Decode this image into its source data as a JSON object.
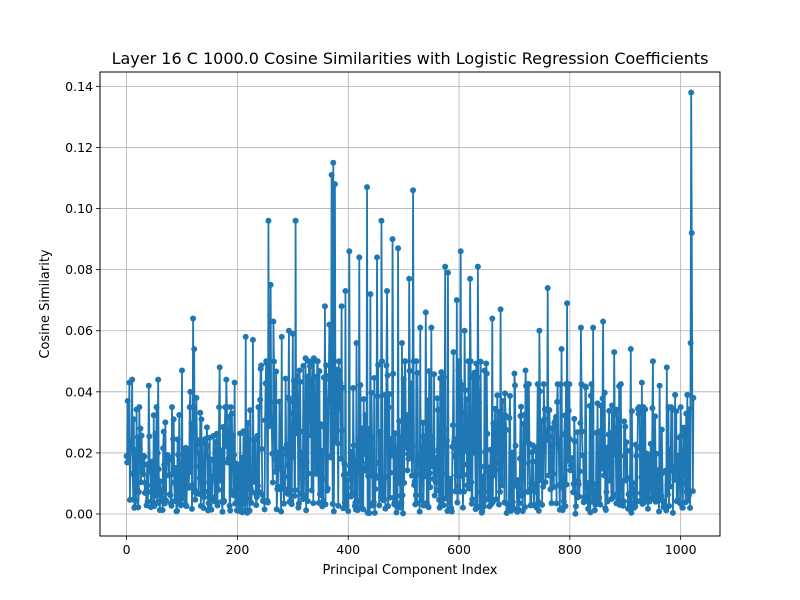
{
  "chart_data": {
    "type": "line",
    "title": "Layer 16 C 1000.0 Cosine Similarities with Logistic Regression Coefficients",
    "xlabel": "Principal Component Index",
    "ylabel": "Cosine Similarity",
    "xlim": [
      -48,
      1071
    ],
    "ylim": [
      -0.0072,
      0.1447
    ],
    "xticks": [
      0,
      200,
      400,
      600,
      800,
      1000
    ],
    "yticks": [
      0.0,
      0.02,
      0.04,
      0.06,
      0.08,
      0.1,
      0.12,
      0.14
    ],
    "grid": true,
    "marker": "circle",
    "n_points": 1024,
    "series": [
      {
        "color": "#1f77b4",
        "peaks": [
          [
            0,
            0.019
          ],
          [
            2,
            0.037
          ],
          [
            5,
            0.043
          ],
          [
            10,
            0.044
          ],
          [
            14,
            0.002
          ],
          [
            25,
            0.028
          ],
          [
            40,
            0.042
          ],
          [
            57,
            0.044
          ],
          [
            70,
            0.03
          ],
          [
            85,
            0.031
          ],
          [
            100,
            0.047
          ],
          [
            115,
            0.04
          ],
          [
            120,
            0.064
          ],
          [
            122,
            0.054
          ],
          [
            126,
            0.038
          ],
          [
            135,
            0.031
          ],
          [
            150,
            0.025
          ],
          [
            168,
            0.048
          ],
          [
            180,
            0.044
          ],
          [
            195,
            0.043
          ],
          [
            215,
            0.058
          ],
          [
            228,
            0.057
          ],
          [
            240,
            0.035
          ],
          [
            252,
            0.05
          ],
          [
            256,
            0.096
          ],
          [
            260,
            0.075
          ],
          [
            265,
            0.063
          ],
          [
            280,
            0.058
          ],
          [
            293,
            0.06
          ],
          [
            300,
            0.059
          ],
          [
            305,
            0.096
          ],
          [
            312,
            0.047
          ],
          [
            323,
            0.051
          ],
          [
            338,
            0.051
          ],
          [
            345,
            0.05
          ],
          [
            358,
            0.068
          ],
          [
            366,
            0.062
          ],
          [
            370,
            0.111
          ],
          [
            373,
            0.115
          ],
          [
            376,
            0.108
          ],
          [
            388,
            0.068
          ],
          [
            395,
            0.073
          ],
          [
            402,
            0.086
          ],
          [
            415,
            0.056
          ],
          [
            420,
            0.084
          ],
          [
            434,
            0.107
          ],
          [
            440,
            0.072
          ],
          [
            452,
            0.084
          ],
          [
            460,
            0.096
          ],
          [
            470,
            0.073
          ],
          [
            480,
            0.09
          ],
          [
            490,
            0.087
          ],
          [
            497,
            0.056
          ],
          [
            510,
            0.077
          ],
          [
            517,
            0.106
          ],
          [
            530,
            0.061
          ],
          [
            540,
            0.066
          ],
          [
            550,
            0.061
          ],
          [
            575,
            0.081
          ],
          [
            580,
            0.079
          ],
          [
            590,
            0.053
          ],
          [
            596,
            0.07
          ],
          [
            603,
            0.086
          ],
          [
            610,
            0.06
          ],
          [
            620,
            0.077
          ],
          [
            634,
            0.081
          ],
          [
            650,
            0.046
          ],
          [
            660,
            0.064
          ],
          [
            675,
            0.067
          ],
          [
            700,
            0.046
          ],
          [
            720,
            0.047
          ],
          [
            745,
            0.06
          ],
          [
            760,
            0.074
          ],
          [
            785,
            0.054
          ],
          [
            795,
            0.069
          ],
          [
            820,
            0.061
          ],
          [
            842,
            0.061
          ],
          [
            860,
            0.063
          ],
          [
            880,
            0.053
          ],
          [
            910,
            0.054
          ],
          [
            930,
            0.043
          ],
          [
            950,
            0.05
          ],
          [
            962,
            0.042
          ],
          [
            975,
            0.048
          ],
          [
            990,
            0.039
          ],
          [
            1000,
            0.035
          ],
          [
            1012,
            0.039
          ],
          [
            1018,
            0.056
          ],
          [
            1019,
            0.138
          ],
          [
            1020,
            0.092
          ],
          [
            1021,
            0.038
          ],
          [
            1023,
            0.038
          ]
        ]
      }
    ]
  }
}
